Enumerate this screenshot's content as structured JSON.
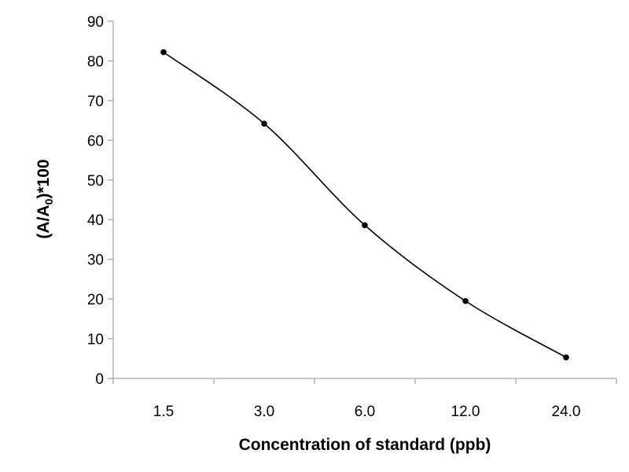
{
  "chart_data": {
    "type": "line",
    "categories": [
      "1.5",
      "3.0",
      "6.0",
      "12.0",
      "24.0"
    ],
    "values": [
      82.2,
      64.2,
      38.6,
      19.5,
      5.3
    ],
    "xlabel": "Concentration of standard (ppb)",
    "ylabel_main": "(A/A",
    "ylabel_sub": "0",
    "ylabel_tail": ")*100",
    "ylim": [
      0,
      90
    ],
    "yticks": [
      "0",
      "10",
      "20",
      "30",
      "40",
      "50",
      "60",
      "70",
      "80",
      "90"
    ],
    "grid": false,
    "legend": "none",
    "line_color": "#000000",
    "marker_color": "#000000",
    "smooth": true
  }
}
